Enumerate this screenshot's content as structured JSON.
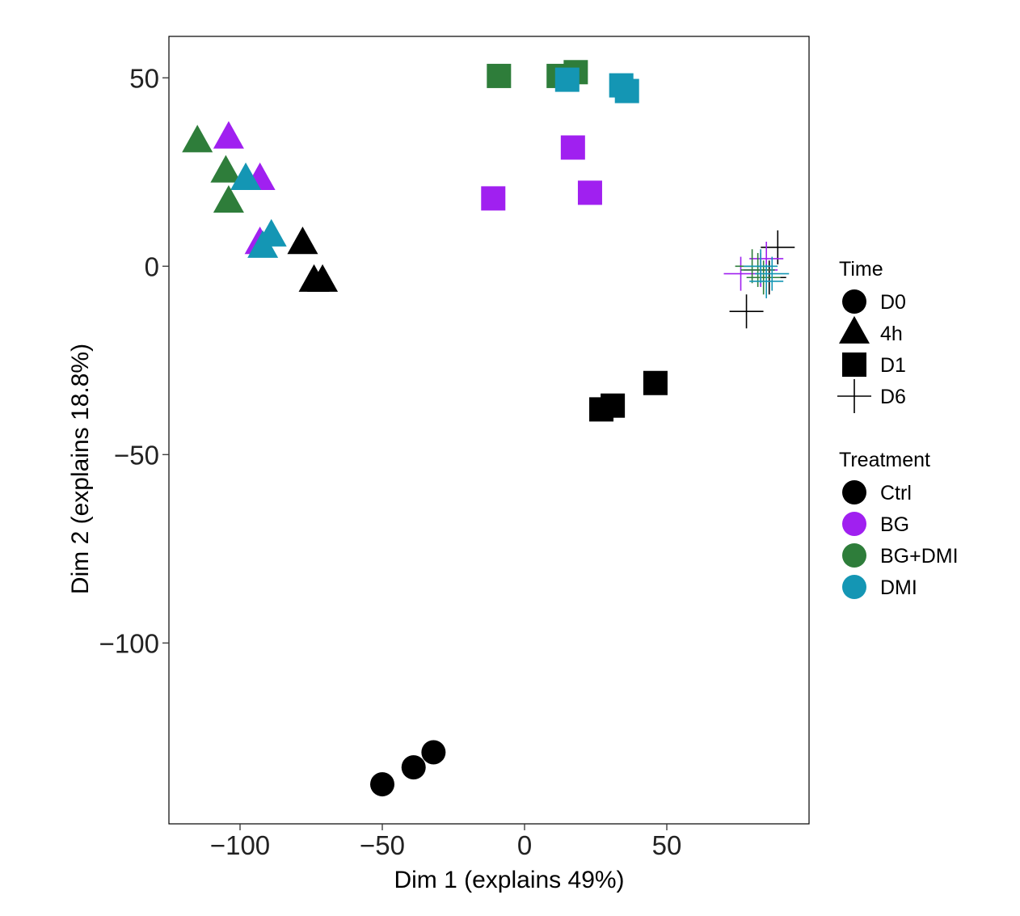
{
  "chart_data": {
    "type": "scatter",
    "xlabel": "Dim 1 (explains 49%)",
    "ylabel": "Dim 2 (explains 18.8%)",
    "xlim": [
      -125,
      100
    ],
    "ylim": [
      -148,
      61
    ],
    "x_ticks": [
      -100,
      -50,
      0,
      50
    ],
    "x_tick_labels": [
      "−100",
      "−50",
      "0",
      "50"
    ],
    "y_ticks": [
      50,
      0,
      -50,
      -100
    ],
    "y_tick_labels": [
      "50",
      "0",
      "−50",
      "−100"
    ],
    "grid": false,
    "legend_placement": "right",
    "legends": [
      {
        "title": "Time",
        "items": [
          {
            "label": "D0",
            "shape": "circle"
          },
          {
            "label": "4h",
            "shape": "triangle"
          },
          {
            "label": "D1",
            "shape": "square"
          },
          {
            "label": "D6",
            "shape": "plus"
          }
        ]
      },
      {
        "title": "Treatment",
        "items": [
          {
            "label": "Ctrl",
            "color": "#000000"
          },
          {
            "label": "BG",
            "color": "#a020f0"
          },
          {
            "label": "BG+DMI",
            "color": "#2e7d3a"
          },
          {
            "label": "DMI",
            "color": "#1496b4"
          }
        ]
      }
    ],
    "points": [
      {
        "x": -50,
        "y": -137.5,
        "time": "D0",
        "treatment": "Ctrl"
      },
      {
        "x": -39,
        "y": -133,
        "time": "D0",
        "treatment": "Ctrl"
      },
      {
        "x": -32,
        "y": -129,
        "time": "D0",
        "treatment": "Ctrl"
      },
      {
        "x": -115,
        "y": 33,
        "time": "4h",
        "treatment": "BG+DMI"
      },
      {
        "x": -104,
        "y": 34,
        "time": "4h",
        "treatment": "BG"
      },
      {
        "x": -105,
        "y": 25,
        "time": "4h",
        "treatment": "BG+DMI"
      },
      {
        "x": -93,
        "y": 23,
        "time": "4h",
        "treatment": "BG"
      },
      {
        "x": -98,
        "y": 23,
        "time": "4h",
        "treatment": "DMI"
      },
      {
        "x": -104,
        "y": 17,
        "time": "4h",
        "treatment": "BG+DMI"
      },
      {
        "x": -93,
        "y": 6,
        "time": "4h",
        "treatment": "BG"
      },
      {
        "x": -89,
        "y": 8,
        "time": "4h",
        "treatment": "DMI"
      },
      {
        "x": -92,
        "y": 5,
        "time": "4h",
        "treatment": "DMI"
      },
      {
        "x": -78,
        "y": 6,
        "time": "4h",
        "treatment": "Ctrl"
      },
      {
        "x": -74,
        "y": -4,
        "time": "4h",
        "treatment": "Ctrl"
      },
      {
        "x": -71,
        "y": -4,
        "time": "4h",
        "treatment": "Ctrl"
      },
      {
        "x": -9,
        "y": 50.5,
        "time": "D1",
        "treatment": "BG+DMI"
      },
      {
        "x": 12,
        "y": 50.5,
        "time": "D1",
        "treatment": "BG+DMI"
      },
      {
        "x": 18,
        "y": 51.5,
        "time": "D1",
        "treatment": "BG+DMI"
      },
      {
        "x": 15,
        "y": 49.5,
        "time": "D1",
        "treatment": "DMI"
      },
      {
        "x": 34,
        "y": 48,
        "time": "D1",
        "treatment": "DMI"
      },
      {
        "x": 36,
        "y": 46.5,
        "time": "D1",
        "treatment": "DMI"
      },
      {
        "x": 17,
        "y": 31.5,
        "time": "D1",
        "treatment": "BG"
      },
      {
        "x": -11,
        "y": 18,
        "time": "D1",
        "treatment": "BG"
      },
      {
        "x": 23,
        "y": 19.5,
        "time": "D1",
        "treatment": "BG"
      },
      {
        "x": 46,
        "y": -31,
        "time": "D1",
        "treatment": "Ctrl"
      },
      {
        "x": 31,
        "y": -37,
        "time": "D1",
        "treatment": "Ctrl"
      },
      {
        "x": 27,
        "y": -38,
        "time": "D1",
        "treatment": "Ctrl"
      },
      {
        "x": 89,
        "y": 5,
        "time": "D6",
        "treatment": "Ctrl"
      },
      {
        "x": 78,
        "y": -12,
        "time": "D6",
        "treatment": "Ctrl"
      },
      {
        "x": 86,
        "y": -3,
        "time": "D6",
        "treatment": "Ctrl"
      },
      {
        "x": 76,
        "y": -2,
        "time": "D6",
        "treatment": "BG"
      },
      {
        "x": 85,
        "y": 2,
        "time": "D6",
        "treatment": "BG"
      },
      {
        "x": 83,
        "y": -1,
        "time": "D6",
        "treatment": "BG"
      },
      {
        "x": 82,
        "y": -1,
        "time": "D6",
        "treatment": "BG+DMI"
      },
      {
        "x": 84,
        "y": -3,
        "time": "D6",
        "treatment": "BG+DMI"
      },
      {
        "x": 80,
        "y": 0,
        "time": "D6",
        "treatment": "BG+DMI"
      },
      {
        "x": 87,
        "y": -2,
        "time": "D6",
        "treatment": "DMI"
      },
      {
        "x": 85,
        "y": -4,
        "time": "D6",
        "treatment": "DMI"
      },
      {
        "x": 83,
        "y": 0,
        "time": "D6",
        "treatment": "DMI"
      }
    ]
  }
}
